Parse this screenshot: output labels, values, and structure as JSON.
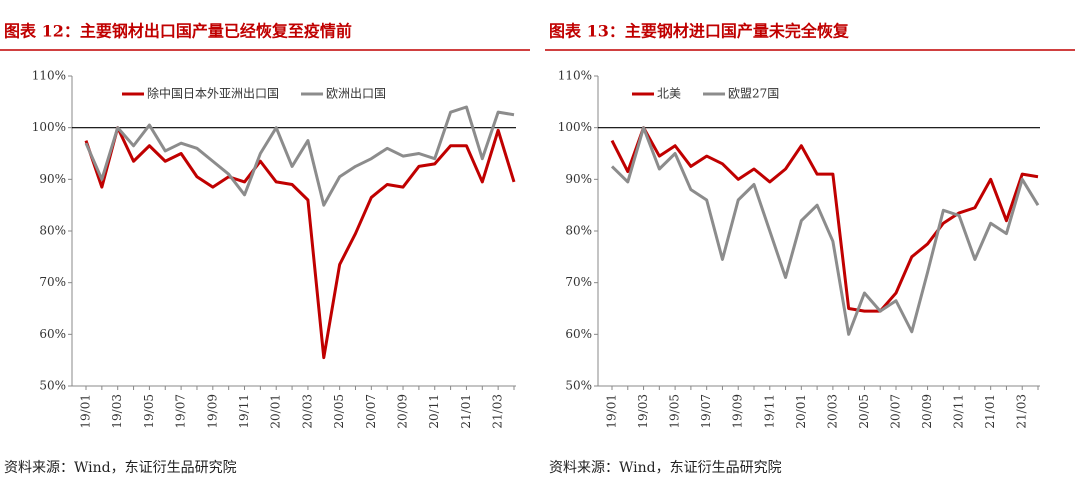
{
  "chart_data": [
    {
      "type": "line",
      "title": "图表 12：主要钢材出口国产量已经恢复至疫情前",
      "source": "资料来源：Wind，东证衍生品研究院",
      "categories": [
        "19/01",
        null,
        "19/03",
        null,
        "19/05",
        null,
        "19/07",
        null,
        "19/09",
        null,
        "19/11",
        null,
        "20/01",
        null,
        "20/03",
        null,
        "20/05",
        null,
        "20/07",
        null,
        "20/09",
        null,
        "20/11",
        null,
        "21/01",
        null,
        "21/03",
        null
      ],
      "series": [
        {
          "name": "除中国日本外亚洲出口国",
          "color": "#c00000",
          "values": [
            97.5,
            88.5,
            100,
            93.5,
            96.5,
            93.5,
            95,
            90.5,
            88.5,
            90.5,
            89.5,
            93.5,
            89.5,
            89,
            86,
            55.5,
            73.5,
            79.5,
            86.5,
            89,
            88.5,
            92.5,
            93,
            96.5,
            96.5,
            89.5,
            99.5,
            89.5
          ]
        },
        {
          "name": "欧洲出口国",
          "color": "#8c8c8c",
          "values": [
            97,
            90,
            100,
            96.5,
            100.5,
            95.5,
            97,
            96,
            93.5,
            91,
            87,
            95,
            100,
            92.5,
            97.5,
            85,
            90.5,
            92.5,
            94,
            96,
            94.5,
            95,
            94,
            103,
            104,
            94,
            103,
            102.5
          ]
        }
      ],
      "ylim": [
        50,
        110
      ],
      "yticks": [
        {
          "value": 50,
          "label": "50%"
        },
        {
          "value": 60,
          "label": "60%"
        },
        {
          "value": 70,
          "label": "70%"
        },
        {
          "value": 80,
          "label": "80%"
        },
        {
          "value": 90,
          "label": "90%"
        },
        {
          "value": 100,
          "label": "100%"
        },
        {
          "value": 110,
          "label": "110%"
        }
      ],
      "reference_line": 100,
      "legend": "top"
    },
    {
      "type": "line",
      "title": "图表 13：主要钢材进口国产量未完全恢复",
      "source": "资料来源：Wind，东证衍生品研究院",
      "categories": [
        "19/01",
        null,
        "19/03",
        null,
        "19/05",
        null,
        "19/07",
        null,
        "19/09",
        null,
        "19/11",
        null,
        "20/01",
        null,
        "20/03",
        null,
        "20/05",
        null,
        "20/07",
        null,
        "20/09",
        null,
        "20/11",
        null,
        "21/01",
        null,
        "21/03",
        null
      ],
      "series": [
        {
          "name": "北美",
          "color": "#c00000",
          "values": [
            97.5,
            91.5,
            100,
            94.5,
            96.5,
            92.5,
            94.5,
            93,
            90,
            92,
            89.5,
            92,
            96.5,
            91,
            91,
            65,
            64.5,
            64.5,
            68,
            75,
            77.5,
            81.5,
            83.5,
            84.5,
            90,
            82,
            91,
            90.5
          ]
        },
        {
          "name": "欧盟27国",
          "color": "#8c8c8c",
          "values": [
            92.5,
            89.5,
            100,
            92,
            95,
            88,
            86,
            74.5,
            86,
            89,
            80,
            71,
            82,
            85,
            78,
            60,
            68,
            64.5,
            66.5,
            60.5,
            72,
            84,
            83,
            74.5,
            81.5,
            79.5,
            90,
            85
          ]
        }
      ],
      "ylim": [
        50,
        110
      ],
      "yticks": [
        {
          "value": 50,
          "label": "50%"
        },
        {
          "value": 60,
          "label": "60%"
        },
        {
          "value": 70,
          "label": "70%"
        },
        {
          "value": 80,
          "label": "80%"
        },
        {
          "value": 90,
          "label": "90%"
        },
        {
          "value": 100,
          "label": "100%"
        },
        {
          "value": 110,
          "label": "110%"
        }
      ],
      "reference_line": 100,
      "legend": "top"
    }
  ]
}
